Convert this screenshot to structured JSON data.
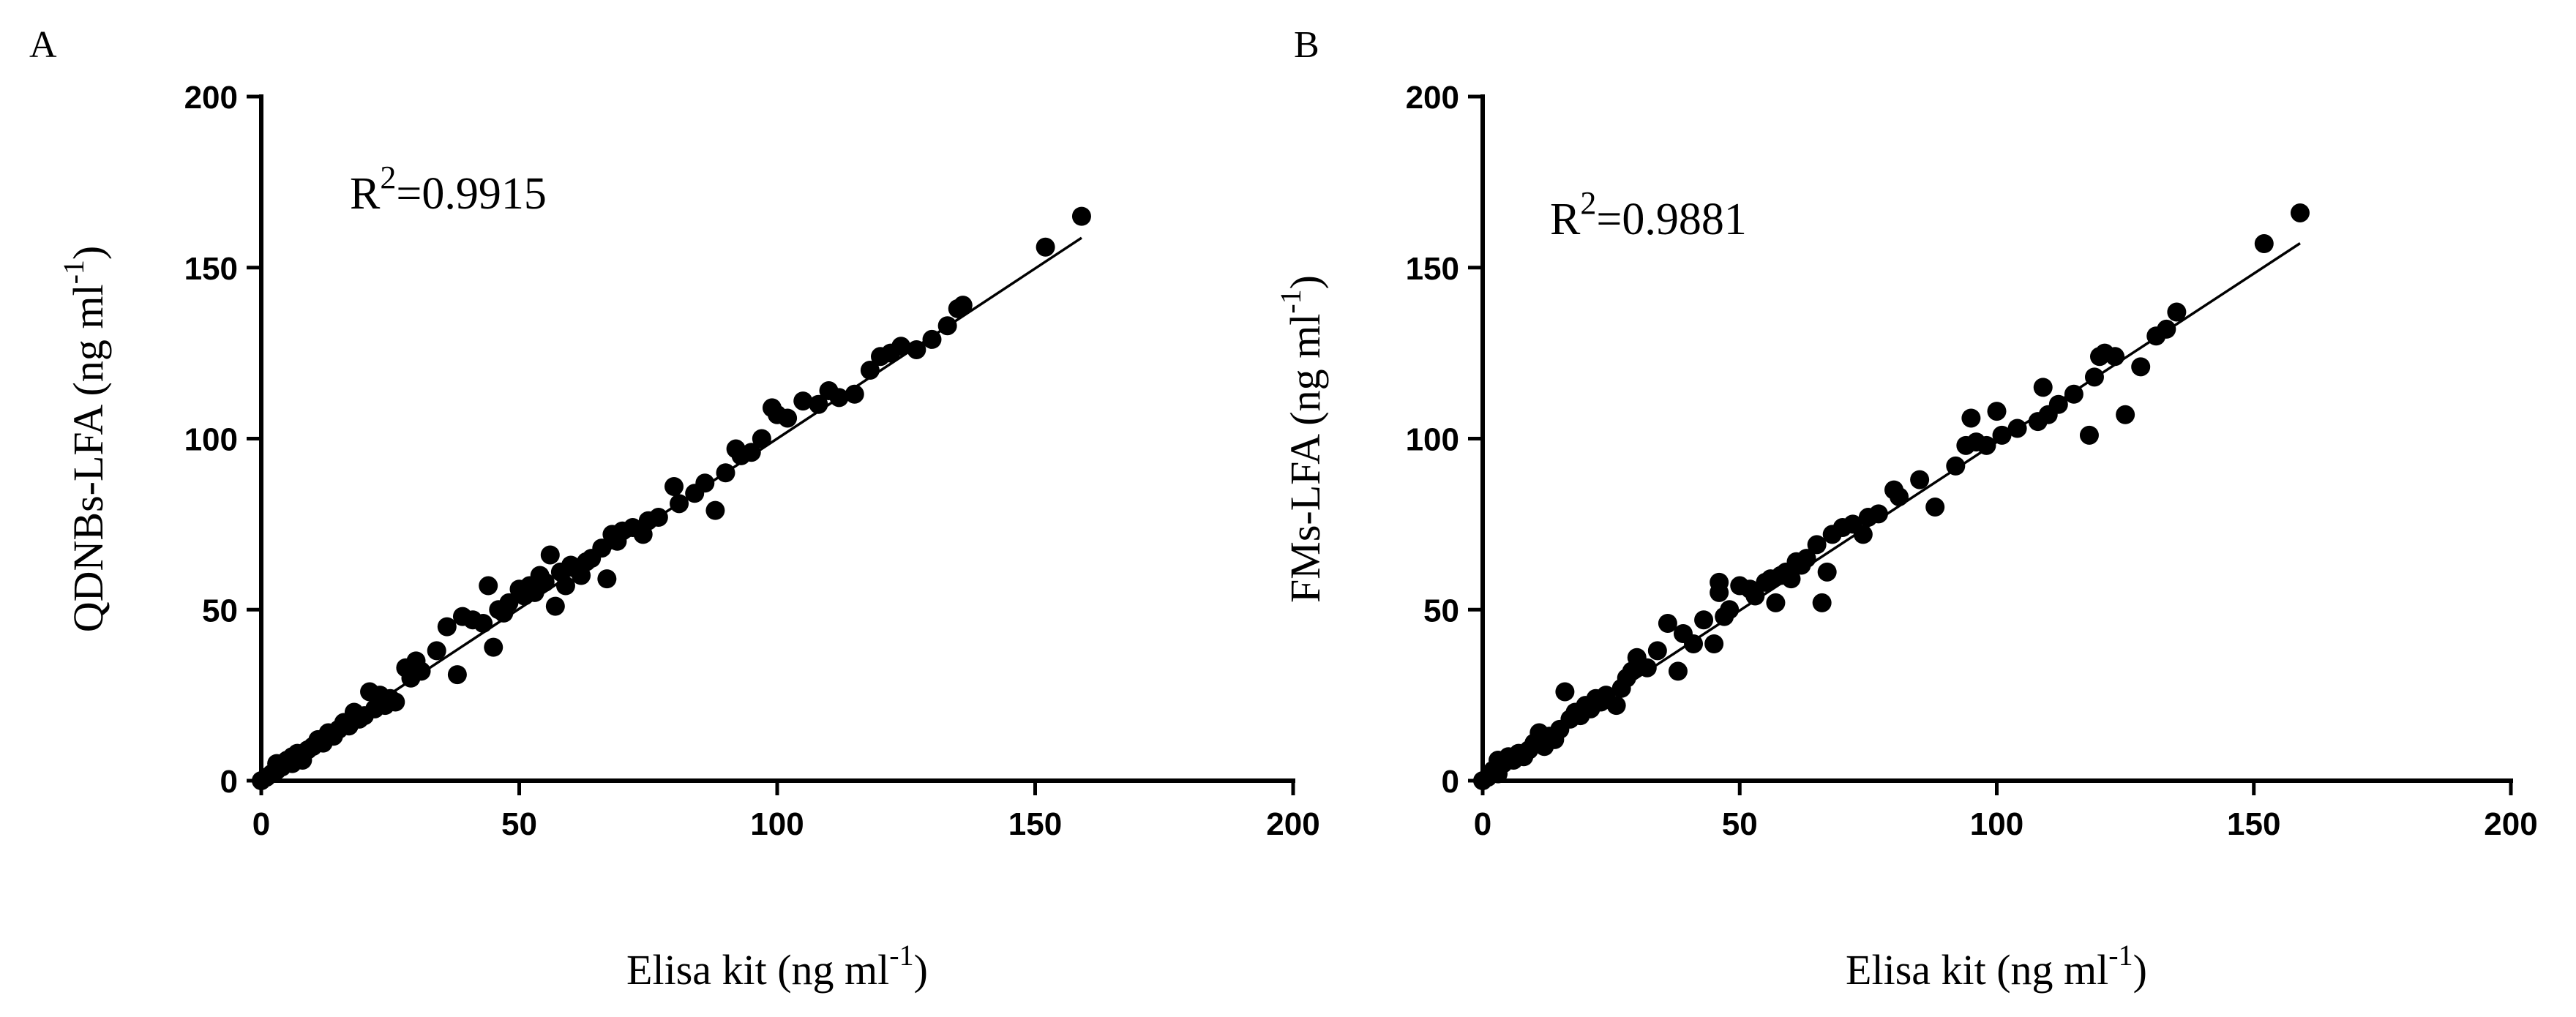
{
  "colors": {
    "marker": "#000000",
    "axis": "#000000",
    "fit_line": "#000000",
    "background": "#ffffff"
  },
  "chart_data": [
    {
      "type": "scatter",
      "panel_label": "A",
      "ylabel": "QDNBs-LFA (ng ml",
      "ylabel_sup": "-1",
      "ylabel_close": ")",
      "xlabel": "Elisa kit (ng ml",
      "xlabel_sup": "-1",
      "xlabel_close": ")",
      "annotation": {
        "base": "R",
        "sup": "2",
        "rest": "=0.9915"
      },
      "xlim": [
        0,
        200
      ],
      "ylim": [
        0,
        200
      ],
      "xticks": [
        0,
        50,
        100,
        150,
        200
      ],
      "yticks": [
        0,
        50,
        100,
        150,
        200
      ],
      "fit_line": {
        "slope": 0.995,
        "intercept": 0.5,
        "x_range": [
          0,
          159
        ]
      },
      "points": [
        [
          0,
          0
        ],
        [
          1,
          1
        ],
        [
          2,
          2
        ],
        [
          3,
          3
        ],
        [
          3,
          5
        ],
        [
          4,
          4
        ],
        [
          5,
          6
        ],
        [
          6,
          5
        ],
        [
          6,
          7
        ],
        [
          7,
          8
        ],
        [
          8,
          6
        ],
        [
          9,
          9
        ],
        [
          10,
          10
        ],
        [
          11,
          12
        ],
        [
          12,
          11
        ],
        [
          13,
          14
        ],
        [
          14,
          13
        ],
        [
          15,
          15
        ],
        [
          16,
          17
        ],
        [
          17,
          16
        ],
        [
          18,
          20
        ],
        [
          19,
          18
        ],
        [
          20,
          19
        ],
        [
          21,
          26
        ],
        [
          22,
          21
        ],
        [
          23,
          25
        ],
        [
          24,
          22
        ],
        [
          25,
          24
        ],
        [
          26,
          23
        ],
        [
          28,
          33
        ],
        [
          29,
          30
        ],
        [
          30,
          35
        ],
        [
          31,
          32
        ],
        [
          34,
          38
        ],
        [
          36,
          45
        ],
        [
          38,
          31
        ],
        [
          39,
          48
        ],
        [
          41,
          47
        ],
        [
          43,
          46
        ],
        [
          44,
          57
        ],
        [
          45,
          39
        ],
        [
          46,
          50
        ],
        [
          47,
          49
        ],
        [
          48,
          52
        ],
        [
          50,
          56
        ],
        [
          51,
          54
        ],
        [
          52,
          57
        ],
        [
          53,
          55
        ],
        [
          54,
          60
        ],
        [
          55,
          58
        ],
        [
          56,
          66
        ],
        [
          57,
          51
        ],
        [
          58,
          61
        ],
        [
          59,
          57
        ],
        [
          60,
          63
        ],
        [
          61,
          62
        ],
        [
          62,
          60
        ],
        [
          63,
          64
        ],
        [
          64,
          65
        ],
        [
          66,
          68
        ],
        [
          67,
          59
        ],
        [
          68,
          72
        ],
        [
          69,
          70
        ],
        [
          70,
          73
        ],
        [
          72,
          74
        ],
        [
          74,
          72
        ],
        [
          75,
          76
        ],
        [
          77,
          77
        ],
        [
          80,
          86
        ],
        [
          81,
          81
        ],
        [
          84,
          84
        ],
        [
          86,
          87
        ],
        [
          88,
          79
        ],
        [
          90,
          90
        ],
        [
          92,
          97
        ],
        [
          93,
          95
        ],
        [
          95,
          96
        ],
        [
          97,
          100
        ],
        [
          99,
          109
        ],
        [
          100,
          107
        ],
        [
          102,
          106
        ],
        [
          105,
          111
        ],
        [
          108,
          110
        ],
        [
          110,
          114
        ],
        [
          112,
          112
        ],
        [
          115,
          113
        ],
        [
          118,
          120
        ],
        [
          120,
          124
        ],
        [
          122,
          125
        ],
        [
          124,
          127
        ],
        [
          127,
          126
        ],
        [
          130,
          129
        ],
        [
          133,
          133
        ],
        [
          135,
          138
        ],
        [
          136,
          139
        ],
        [
          152,
          156
        ],
        [
          159,
          165
        ]
      ]
    },
    {
      "type": "scatter",
      "panel_label": "B",
      "ylabel": "FMs-LFA (ng ml",
      "ylabel_sup": "-1",
      "ylabel_close": ")",
      "xlabel": "Elisa kit (ng ml",
      "xlabel_sup": "-1",
      "xlabel_close": ")",
      "annotation": {
        "base": "R",
        "sup": "2",
        "rest": "=0.9881"
      },
      "xlim": [
        0,
        200
      ],
      "ylim": [
        0,
        200
      ],
      "xticks": [
        0,
        50,
        100,
        150,
        200
      ],
      "yticks": [
        0,
        50,
        100,
        150,
        200
      ],
      "fit_line": {
        "slope": 0.985,
        "intercept": 0.5,
        "x_range": [
          0,
          159
        ]
      },
      "points": [
        [
          0,
          0
        ],
        [
          1,
          1
        ],
        [
          2,
          3
        ],
        [
          3,
          2
        ],
        [
          3,
          6
        ],
        [
          4,
          5
        ],
        [
          5,
          7
        ],
        [
          6,
          6
        ],
        [
          7,
          8
        ],
        [
          8,
          7
        ],
        [
          9,
          9
        ],
        [
          10,
          11
        ],
        [
          11,
          14
        ],
        [
          12,
          10
        ],
        [
          13,
          13
        ],
        [
          14,
          12
        ],
        [
          15,
          15
        ],
        [
          16,
          26
        ],
        [
          17,
          18
        ],
        [
          18,
          20
        ],
        [
          19,
          19
        ],
        [
          20,
          22
        ],
        [
          21,
          21
        ],
        [
          22,
          24
        ],
        [
          23,
          23
        ],
        [
          24,
          25
        ],
        [
          26,
          22
        ],
        [
          27,
          27
        ],
        [
          28,
          30
        ],
        [
          29,
          32
        ],
        [
          30,
          36
        ],
        [
          32,
          33
        ],
        [
          34,
          38
        ],
        [
          36,
          46
        ],
        [
          38,
          32
        ],
        [
          39,
          43
        ],
        [
          41,
          40
        ],
        [
          43,
          47
        ],
        [
          45,
          40
        ],
        [
          46,
          58
        ],
        [
          46,
          55
        ],
        [
          47,
          48
        ],
        [
          48,
          50
        ],
        [
          50,
          57
        ],
        [
          52,
          56
        ],
        [
          53,
          54
        ],
        [
          55,
          58
        ],
        [
          56,
          59
        ],
        [
          57,
          52
        ],
        [
          58,
          60
        ],
        [
          59,
          61
        ],
        [
          60,
          59
        ],
        [
          61,
          64
        ],
        [
          62,
          63
        ],
        [
          63,
          65
        ],
        [
          65,
          69
        ],
        [
          66,
          52
        ],
        [
          67,
          61
        ],
        [
          68,
          72
        ],
        [
          70,
          74
        ],
        [
          72,
          75
        ],
        [
          74,
          72
        ],
        [
          75,
          77
        ],
        [
          77,
          78
        ],
        [
          80,
          85
        ],
        [
          81,
          83
        ],
        [
          85,
          88
        ],
        [
          88,
          80
        ],
        [
          92,
          92
        ],
        [
          94,
          98
        ],
        [
          95,
          106
        ],
        [
          96,
          99
        ],
        [
          98,
          98
        ],
        [
          100,
          108
        ],
        [
          101,
          101
        ],
        [
          104,
          103
        ],
        [
          108,
          105
        ],
        [
          109,
          115
        ],
        [
          110,
          107
        ],
        [
          112,
          110
        ],
        [
          115,
          113
        ],
        [
          118,
          101
        ],
        [
          119,
          118
        ],
        [
          120,
          124
        ],
        [
          121,
          125
        ],
        [
          123,
          124
        ],
        [
          125,
          107
        ],
        [
          128,
          121
        ],
        [
          131,
          130
        ],
        [
          133,
          132
        ],
        [
          135,
          137
        ],
        [
          152,
          157
        ],
        [
          159,
          166
        ]
      ]
    }
  ]
}
